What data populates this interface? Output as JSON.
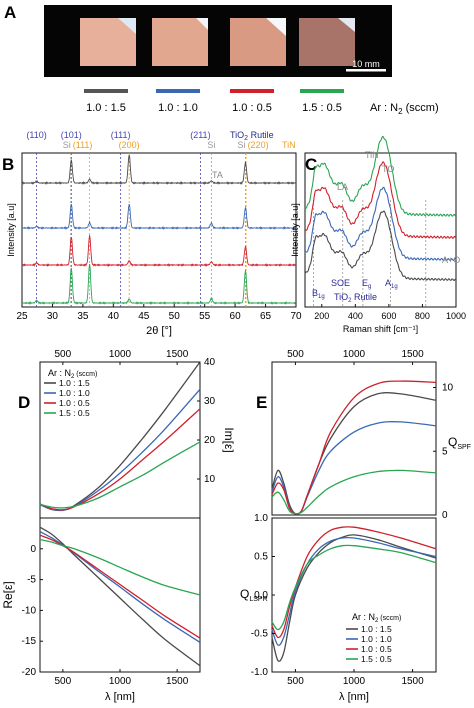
{
  "panels": {
    "A": "A",
    "B": "B",
    "C": "C",
    "D": "D",
    "E": "E"
  },
  "panelA": {
    "scalebar_label": "10 mm",
    "samples": [
      {
        "ratio": "1.0 : 1.5",
        "color": "#555555"
      },
      {
        "ratio": "1.0 : 1.0",
        "color": "#3a68b5"
      },
      {
        "ratio": "1.0 : 0.5",
        "color": "#d0202a"
      },
      {
        "ratio": "1.5 : 0.5",
        "color": "#2aa552"
      }
    ],
    "gas_label": "Ar : N",
    "gas_sub": "2",
    "gas_unit": " (sccm)"
  },
  "colors": {
    "s1": "#4a4a4a",
    "s2": "#3a68b5",
    "s3": "#d0202a",
    "s4": "#2aa552"
  },
  "chart_data": [
    {
      "id": "B",
      "type": "line",
      "xlabel": "2θ [°]",
      "ylabel": "Intensity [a.u]",
      "xlim": [
        25,
        70
      ],
      "xticks": [
        25,
        30,
        35,
        40,
        45,
        50,
        55,
        60,
        65,
        70
      ],
      "reference_lines": [
        {
          "x": 27.4,
          "label": "(110)",
          "phase": "TiO2 Rutile"
        },
        {
          "x": 33.1,
          "label": "(101)",
          "phase": "TiO2 Rutile"
        },
        {
          "x": 33.0,
          "label": "Si",
          "phase": "Si"
        },
        {
          "x": 36.1,
          "label": "(111)",
          "phase": "TiN"
        },
        {
          "x": 41.2,
          "label": "(111)",
          "phase": "TiO2 Rutile"
        },
        {
          "x": 42.6,
          "label": "(200)",
          "phase": "TiN"
        },
        {
          "x": 54.3,
          "label": "(211)",
          "phase": "TiO2 Rutile"
        },
        {
          "x": 56.1,
          "label": "Si",
          "phase": "Si"
        },
        {
          "x": 61.7,
          "label": "Si",
          "phase": "Si"
        },
        {
          "x": 61.8,
          "label": "(220)",
          "phase": "TiN"
        }
      ],
      "legend_phase_1": "TiO",
      "legend_phase_1_sub": "2",
      "legend_phase_1_rest": " Rutile",
      "legend_phase_2": "TiN",
      "series": [
        {
          "ratio": "1.0 : 1.5",
          "peaks": [
            [
              27.4,
              0.15
            ],
            [
              33.1,
              2.1
            ],
            [
              36.1,
              0.35
            ],
            [
              42.6,
              2.6
            ],
            [
              56.1,
              0.2
            ],
            [
              61.7,
              1.9
            ]
          ]
        },
        {
          "ratio": "1.0 : 1.0",
          "peaks": [
            [
              27.4,
              0.15
            ],
            [
              33.1,
              2.2
            ],
            [
              36.1,
              0.5
            ],
            [
              42.6,
              2.2
            ],
            [
              56.1,
              0.45
            ],
            [
              61.7,
              1.9
            ]
          ]
        },
        {
          "ratio": "1.0 : 0.5",
          "peaks": [
            [
              27.4,
              0.2
            ],
            [
              33.1,
              2.6
            ],
            [
              36.1,
              2.7
            ],
            [
              42.6,
              0.4
            ],
            [
              56.1,
              0.3
            ],
            [
              61.7,
              1.7
            ]
          ]
        },
        {
          "ratio": "1.5 : 0.5",
          "peaks": [
            [
              27.4,
              0.25
            ],
            [
              33.1,
              3.2
            ],
            [
              36.1,
              3.6
            ],
            [
              42.6,
              0.35
            ],
            [
              56.1,
              0.4
            ],
            [
              61.7,
              3.0
            ]
          ]
        }
      ]
    },
    {
      "id": "C",
      "type": "line",
      "xlabel": "Raman shift [cm⁻¹]",
      "ylabel": "Intensity [a.u]",
      "xlim": [
        100,
        1000
      ],
      "xticks": [
        200,
        400,
        600,
        800,
        1000
      ],
      "annotations_top": [
        "TA",
        "LA",
        "TiN",
        "TO",
        "A+O"
      ],
      "annotations_bottom": [
        "B",
        "SOE",
        "E",
        "A",
        "TiO",
        "Rutile"
      ],
      "series": [
        {
          "ratio": "1.0 : 1.5",
          "offset": 0.0
        },
        {
          "ratio": "1.0 : 1.0",
          "offset": 0.55
        },
        {
          "ratio": "1.0 : 0.5",
          "offset": 1.2
        },
        {
          "ratio": "1.5 : 0.5",
          "offset": 1.85
        }
      ]
    },
    {
      "id": "D",
      "type": "line",
      "xlabel": "λ [nm]",
      "ylabel_top": "Im[ε]",
      "ylabel_bottom": "Re[ε]",
      "xlim": [
        300,
        1700
      ],
      "xticks": [
        500,
        1000,
        1500
      ],
      "top_ylim": [
        0,
        40
      ],
      "top_yticks": [
        10,
        20,
        30,
        40
      ],
      "bottom_ylim": [
        -20,
        5
      ],
      "bottom_yticks": [
        0,
        -5,
        -10,
        -15,
        -20
      ],
      "legend_title": "Ar : N",
      "legend_title_sub": "2",
      "legend_title_rest": " (sccm)",
      "legend": [
        "1.0 : 1.5",
        "1.0 : 1.0",
        "1.0 : 0.5",
        "1.5 : 0.5"
      ],
      "series_im": [
        {
          "x": [
            300,
            400,
            500,
            600,
            800,
            1000,
            1200,
            1400,
            1700
          ],
          "y": [
            3.5,
            2.2,
            2.0,
            3.2,
            7.5,
            13.5,
            20.5,
            28,
            40
          ]
        },
        {
          "x": [
            300,
            400,
            500,
            600,
            800,
            1000,
            1200,
            1400,
            1700
          ],
          "y": [
            3.4,
            2.2,
            2.0,
            3.0,
            6.8,
            11.5,
            17,
            23,
            33
          ]
        },
        {
          "x": [
            300,
            400,
            500,
            600,
            800,
            1000,
            1200,
            1400,
            1700
          ],
          "y": [
            3.6,
            2.4,
            2.1,
            2.9,
            6.0,
            10,
            15,
            20,
            28
          ]
        },
        {
          "x": [
            300,
            400,
            500,
            600,
            800,
            1000,
            1200,
            1400,
            1700
          ],
          "y": [
            3.5,
            2.8,
            2.6,
            3.0,
            5.0,
            8,
            11,
            14.5,
            19.5
          ]
        }
      ],
      "series_re": [
        {
          "x": [
            300,
            400,
            500,
            600,
            800,
            1000,
            1200,
            1400,
            1700
          ],
          "y": [
            3.5,
            2.4,
            0.8,
            -1.0,
            -4.5,
            -8,
            -11.5,
            -14.8,
            -19
          ]
        },
        {
          "x": [
            300,
            400,
            500,
            600,
            800,
            1000,
            1200,
            1400,
            1700
          ],
          "y": [
            2.8,
            1.8,
            0.6,
            -0.7,
            -3.5,
            -6.2,
            -9,
            -11.6,
            -15.2
          ]
        },
        {
          "x": [
            300,
            400,
            500,
            600,
            800,
            1000,
            1200,
            1400,
            1700
          ],
          "y": [
            2.2,
            1.5,
            0.5,
            -0.6,
            -3.2,
            -5.8,
            -8.4,
            -11,
            -14.5
          ]
        },
        {
          "x": [
            300,
            400,
            500,
            600,
            800,
            1000,
            1200,
            1400,
            1700
          ],
          "y": [
            1.5,
            1.1,
            0.5,
            0.0,
            -1.4,
            -3.0,
            -4.6,
            -6.0,
            -7.5
          ]
        }
      ]
    },
    {
      "id": "E",
      "type": "line",
      "xlabel": "λ [nm]",
      "ylabel_top": "Q",
      "ylabel_top_sub": "SPF",
      "ylabel_bottom": "Q",
      "ylabel_bottom_sub": "LSPR",
      "xlim": [
        300,
        1700
      ],
      "xticks": [
        500,
        1000,
        1500
      ],
      "top_ylim": [
        0,
        12
      ],
      "top_yticks": [
        0,
        5,
        10
      ],
      "bottom_ylim": [
        -1.0,
        1.0
      ],
      "bottom_yticks": [
        1.0,
        0.5,
        0.0,
        -0.5,
        -1.0
      ],
      "legend_title": "Ar : N",
      "legend_title_sub": "2",
      "legend_title_rest": " (sccm)",
      "legend": [
        "1.0 : 1.5",
        "1.0 : 1.0",
        "1.0 : 0.5",
        "1.5 : 0.5"
      ],
      "series_spf": [
        {
          "x": [
            300,
            350,
            400,
            450,
            500,
            550,
            600,
            700,
            800,
            1000,
            1200,
            1400,
            1700
          ],
          "y": [
            2.0,
            3.5,
            2.5,
            0.8,
            0.1,
            0.3,
            1.5,
            4.0,
            6.0,
            8.5,
            9.5,
            9.5,
            9.0
          ]
        },
        {
          "x": [
            300,
            350,
            400,
            450,
            500,
            550,
            600,
            700,
            800,
            1000,
            1200,
            1400,
            1700
          ],
          "y": [
            1.8,
            3.0,
            2.2,
            0.6,
            0.1,
            0.3,
            1.4,
            3.5,
            5.0,
            6.5,
            7.2,
            7.3,
            7.0
          ]
        },
        {
          "x": [
            300,
            350,
            400,
            450,
            500,
            550,
            600,
            700,
            800,
            1000,
            1200,
            1400,
            1700
          ],
          "y": [
            1.6,
            2.5,
            2.0,
            0.5,
            0.1,
            0.3,
            1.5,
            4.0,
            6.5,
            9.2,
            10.3,
            10.5,
            10.4
          ]
        },
        {
          "x": [
            300,
            350,
            400,
            450,
            500,
            550,
            600,
            700,
            800,
            1000,
            1200,
            1400,
            1700
          ],
          "y": [
            1.4,
            1.8,
            1.2,
            0.3,
            0.1,
            0.2,
            0.6,
            1.5,
            2.2,
            3.0,
            3.4,
            3.5,
            3.3
          ]
        }
      ],
      "series_lspr": [
        {
          "x": [
            300,
            350,
            400,
            450,
            500,
            600,
            700,
            800,
            900,
            1000,
            1200,
            1400,
            1700
          ],
          "y": [
            -0.55,
            -0.85,
            -0.75,
            -0.35,
            0.0,
            0.35,
            0.55,
            0.68,
            0.75,
            0.78,
            0.72,
            0.62,
            0.48
          ]
        },
        {
          "x": [
            300,
            350,
            400,
            450,
            500,
            600,
            700,
            800,
            900,
            1000,
            1200,
            1400,
            1700
          ],
          "y": [
            -0.45,
            -0.65,
            -0.55,
            -0.25,
            0.05,
            0.4,
            0.6,
            0.7,
            0.74,
            0.74,
            0.68,
            0.6,
            0.5
          ]
        },
        {
          "x": [
            300,
            350,
            400,
            450,
            500,
            600,
            700,
            800,
            900,
            1000,
            1200,
            1400,
            1700
          ],
          "y": [
            -0.4,
            -0.55,
            -0.45,
            -0.15,
            0.1,
            0.5,
            0.72,
            0.84,
            0.88,
            0.88,
            0.82,
            0.74,
            0.6
          ]
        },
        {
          "x": [
            300,
            350,
            400,
            450,
            500,
            600,
            700,
            800,
            900,
            1000,
            1200,
            1400,
            1700
          ],
          "y": [
            -0.35,
            -0.45,
            -0.35,
            -0.1,
            0.1,
            0.4,
            0.52,
            0.6,
            0.64,
            0.64,
            0.6,
            0.55,
            0.42
          ]
        }
      ]
    }
  ]
}
